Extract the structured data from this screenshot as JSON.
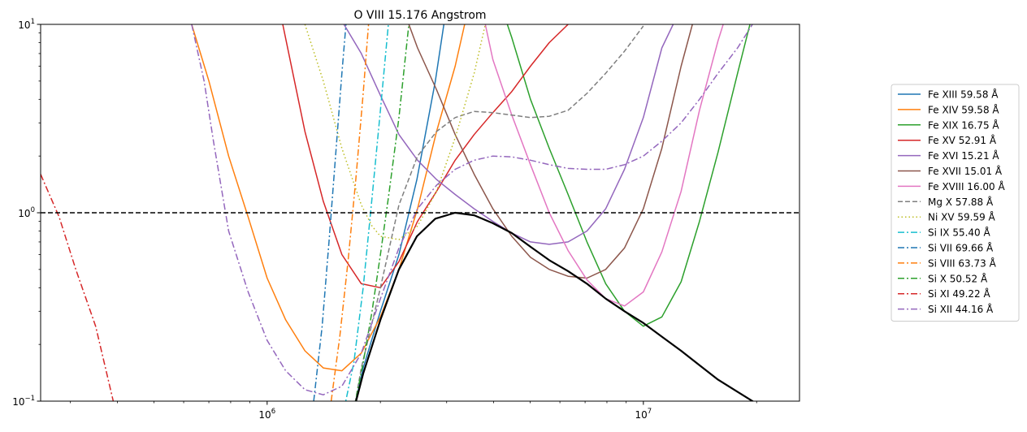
{
  "chart_data": {
    "type": "line",
    "title": "O VIII 15.176 Angstrom",
    "xlabel": "",
    "ylabel": "",
    "xscale": "log",
    "yscale": "log",
    "xlim": [
      250000,
      26000000
    ],
    "ylim": [
      0.1,
      10
    ],
    "grid": false,
    "legend_position": "right",
    "x_ticks": [
      {
        "value": 1000000,
        "base": "10",
        "exp": "6"
      },
      {
        "value": 10000000,
        "base": "10",
        "exp": "7"
      }
    ],
    "y_ticks": [
      {
        "value": 0.1,
        "base": "10",
        "exp": "−1"
      },
      {
        "value": 1,
        "base": "10",
        "exp": "0"
      },
      {
        "value": 10,
        "base": "10",
        "exp": "1"
      }
    ],
    "reference_line": {
      "y": 1,
      "style": "dashed",
      "color": "#000000"
    },
    "reference_curve": {
      "color": "#000000",
      "x": [
        1700000,
        1800000,
        2000000,
        2240000,
        2500000,
        2800000,
        3160000,
        3550000,
        3980000,
        4470000,
        5010000,
        5620000,
        6310000,
        7080000,
        7940000,
        8910000,
        10000000,
        11200000,
        12600000,
        14100000,
        15800000,
        17800000,
        20000000
      ],
      "y": [
        0.09,
        0.14,
        0.27,
        0.5,
        0.75,
        0.93,
        1.0,
        0.97,
        0.88,
        0.78,
        0.66,
        0.56,
        0.49,
        0.42,
        0.35,
        0.3,
        0.26,
        0.22,
        0.185,
        0.155,
        0.13,
        0.112,
        0.097
      ]
    },
    "series": [
      {
        "name": "Fe XIII 59.58 Å",
        "color": "#1f77b4",
        "dash": "solid",
        "x": [
          1700000,
          1800000,
          2000000,
          2240000,
          2500000,
          2800000,
          2950000
        ],
        "y": [
          0.09,
          0.15,
          0.3,
          0.6,
          1.5,
          5.0,
          10.0
        ]
      },
      {
        "name": "Fe XIV 59.58 Å",
        "color": "#ff7f0e",
        "dash": "solid",
        "x": [
          630000,
          700000,
          790000,
          890000,
          1000000,
          1120000,
          1260000,
          1410000,
          1580000,
          1780000,
          2000000,
          2240000,
          2510000,
          2820000,
          3160000,
          3350000
        ],
        "y": [
          10.0,
          5.0,
          2.0,
          0.95,
          0.45,
          0.27,
          0.185,
          0.15,
          0.145,
          0.18,
          0.28,
          0.5,
          1.05,
          2.7,
          6.0,
          10.0
        ]
      },
      {
        "name": "Fe XIX 16.75 Å",
        "color": "#2ca02c",
        "dash": "solid",
        "x": [
          4350000,
          4470000,
          5010000,
          5620000,
          6310000,
          7080000,
          7940000,
          8910000,
          10000000,
          11200000,
          12600000,
          14100000,
          15800000,
          17800000,
          19200000
        ],
        "y": [
          10.0,
          8.5,
          4.0,
          2.2,
          1.25,
          0.7,
          0.42,
          0.3,
          0.25,
          0.28,
          0.43,
          0.9,
          2.1,
          5.5,
          10.0
        ]
      },
      {
        "name": "Fe XV 52.91 Å",
        "color": "#d62728",
        "dash": "solid",
        "x": [
          1100000,
          1260000,
          1410000,
          1580000,
          1780000,
          2000000,
          2240000,
          2510000,
          2820000,
          3160000,
          3550000,
          3980000,
          4470000,
          5010000,
          5620000,
          6310000
        ],
        "y": [
          10.0,
          2.7,
          1.15,
          0.6,
          0.42,
          0.4,
          0.55,
          0.9,
          1.3,
          1.9,
          2.6,
          3.4,
          4.4,
          6.0,
          8.0,
          10.0
        ]
      },
      {
        "name": "Fe XVI 15.21 Å",
        "color": "#9467bd",
        "dash": "solid",
        "x": [
          1600000,
          1780000,
          2000000,
          2240000,
          2510000,
          2820000,
          3160000,
          3550000,
          3980000,
          4470000,
          5010000,
          5620000,
          6310000,
          7080000,
          7940000,
          8910000,
          10000000,
          11200000,
          12000000
        ],
        "y": [
          10.0,
          7.0,
          4.2,
          2.6,
          1.9,
          1.5,
          1.25,
          1.05,
          0.9,
          0.78,
          0.7,
          0.68,
          0.7,
          0.8,
          1.05,
          1.7,
          3.2,
          7.5,
          10.0
        ]
      },
      {
        "name": "Fe XVII 15.01 Å",
        "color": "#8c564b",
        "dash": "solid",
        "x": [
          2380000,
          2510000,
          2820000,
          3160000,
          3550000,
          3980000,
          4470000,
          5010000,
          5620000,
          6310000,
          7080000,
          7940000,
          8910000,
          10000000,
          11200000,
          12600000,
          13500000
        ],
        "y": [
          10.0,
          7.5,
          4.5,
          2.6,
          1.6,
          1.05,
          0.75,
          0.58,
          0.5,
          0.46,
          0.45,
          0.5,
          0.65,
          1.05,
          2.2,
          6.0,
          10.0
        ]
      },
      {
        "name": "Fe XVIII 16.00 Å",
        "color": "#e377c2",
        "dash": "solid",
        "x": [
          3800000,
          3980000,
          4470000,
          5010000,
          5620000,
          6310000,
          7080000,
          7940000,
          8910000,
          10000000,
          11200000,
          12600000,
          14100000,
          15800000,
          16300000
        ],
        "y": [
          10.0,
          6.5,
          3.3,
          1.8,
          1.0,
          0.63,
          0.44,
          0.35,
          0.32,
          0.38,
          0.62,
          1.3,
          3.5,
          8.2,
          10.0
        ]
      },
      {
        "name": "Mg X 57.88 Å",
        "color": "#7f7f7f",
        "dash": "dashed",
        "x": [
          1700000,
          1780000,
          2000000,
          2240000,
          2510000,
          2820000,
          3160000,
          3550000,
          3980000,
          4470000,
          5010000,
          5620000,
          6310000,
          7080000,
          7940000,
          8910000,
          10000000
        ],
        "y": [
          0.09,
          0.15,
          0.4,
          1.1,
          2.0,
          2.7,
          3.2,
          3.45,
          3.4,
          3.3,
          3.2,
          3.25,
          3.5,
          4.3,
          5.5,
          7.2,
          9.8
        ]
      },
      {
        "name": "Ni XV 59.59 Å",
        "color": "#bcbd22",
        "dash": "dotted",
        "x": [
          1260000,
          1410000,
          1580000,
          1780000,
          1900000,
          2000000,
          2240000,
          2510000,
          2820000,
          3160000,
          3550000,
          3800000
        ],
        "y": [
          10.0,
          5.0,
          2.2,
          1.1,
          0.85,
          0.75,
          0.72,
          0.85,
          1.3,
          2.5,
          5.5,
          10.0
        ]
      },
      {
        "name": "Si IX 55.40 Å",
        "color": "#17becf",
        "dash": "dashdot",
        "x": [
          1600000,
          1700000,
          1800000,
          1900000,
          2000000,
          2100000
        ],
        "y": [
          0.09,
          0.16,
          0.4,
          1.2,
          3.5,
          10.0
        ]
      },
      {
        "name": "Si VII 69.66 Å",
        "color": "#1f77b4",
        "dash": "dashdot",
        "x": [
          1330000,
          1400000,
          1460000,
          1520000,
          1580000,
          1620000
        ],
        "y": [
          0.1,
          0.25,
          0.7,
          2.0,
          5.5,
          10.0
        ]
      },
      {
        "name": "Si VIII 63.73 Å",
        "color": "#ff7f0e",
        "dash": "dashdot",
        "x": [
          1480000,
          1560000,
          1640000,
          1720000,
          1800000,
          1860000
        ],
        "y": [
          0.1,
          0.22,
          0.55,
          1.5,
          4.3,
          10.0
        ]
      },
      {
        "name": "Si X 50.52 Å",
        "color": "#2ca02c",
        "dash": "dashdot",
        "x": [
          1700000,
          1800000,
          1900000,
          2000000,
          2100000,
          2240000,
          2380000
        ],
        "y": [
          0.09,
          0.16,
          0.3,
          0.6,
          1.2,
          3.2,
          10.0
        ]
      },
      {
        "name": "Si XI 49.22 Å",
        "color": "#d62728",
        "dash": "dashdot",
        "x": [
          250000,
          280000,
          310000,
          350000,
          390000
        ],
        "y": [
          1.6,
          0.95,
          0.5,
          0.25,
          0.1
        ]
      },
      {
        "name": "Si XII 44.16 Å",
        "color": "#9467bd",
        "dash": "dashdot",
        "x": [
          630000,
          680000,
          720000,
          790000,
          890000,
          1000000,
          1120000,
          1260000,
          1410000,
          1580000,
          1780000,
          2000000,
          2240000,
          2510000,
          2820000,
          3160000,
          3550000,
          3980000,
          4470000,
          5010000,
          5620000,
          6310000,
          7080000,
          7940000,
          8910000,
          10000000,
          11200000,
          12600000,
          14100000,
          15800000,
          17800000,
          19500000
        ],
        "y": [
          10.0,
          5.0,
          2.4,
          0.8,
          0.38,
          0.21,
          0.145,
          0.115,
          0.108,
          0.12,
          0.18,
          0.35,
          0.65,
          1.05,
          1.4,
          1.7,
          1.9,
          2.0,
          1.98,
          1.9,
          1.8,
          1.72,
          1.7,
          1.7,
          1.8,
          2.0,
          2.4,
          3.0,
          4.0,
          5.5,
          7.5,
          10.0
        ]
      }
    ]
  }
}
